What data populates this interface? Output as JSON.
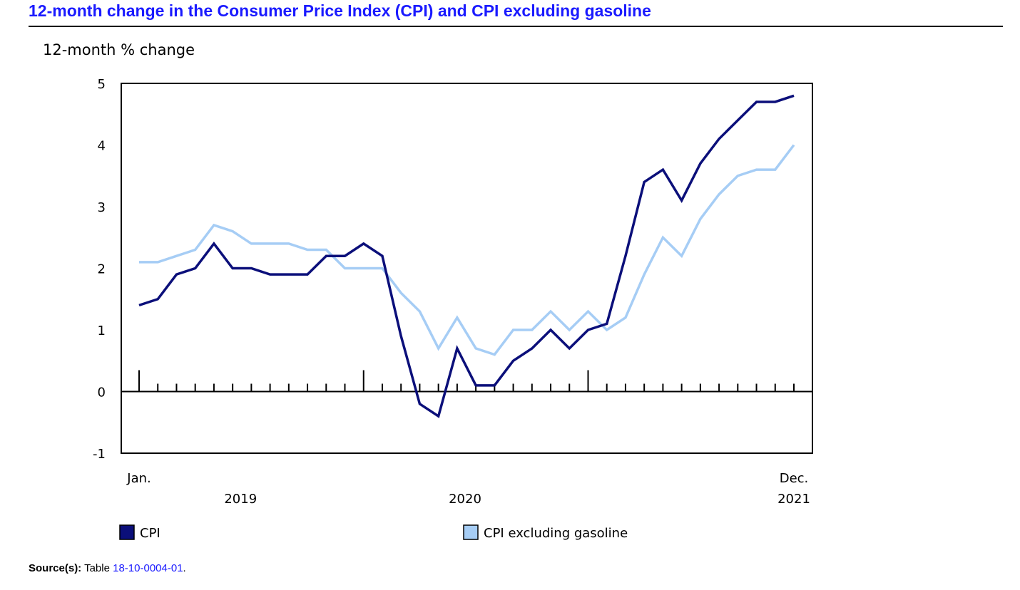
{
  "title": "12-month change in the Consumer Price Index (CPI) and CPI excluding gasoline",
  "source": {
    "label": "Source(s):",
    "text": "Table",
    "link": "18-10-0004-01",
    "end": "."
  },
  "chart_data": {
    "type": "line",
    "title": "12-month change in the Consumer Price Index (CPI) and CPI excluding gasoline",
    "ylabel": "12-month % change",
    "ylim": [
      -1,
      5
    ],
    "yticks": [
      -1,
      0,
      1,
      2,
      3,
      4,
      5
    ],
    "x_start": "Jan. 2019",
    "x_end": "Dec. 2021",
    "month_labels": {
      "first": "Jan.",
      "last": "Dec."
    },
    "years": [
      "2019",
      "2020",
      "2021"
    ],
    "grid": false,
    "legend_position": "bottom",
    "series": [
      {
        "name": "CPI",
        "color": "#0b0f7a",
        "values": [
          1.4,
          1.5,
          1.9,
          2.0,
          2.4,
          2.0,
          2.0,
          1.9,
          1.9,
          1.9,
          2.2,
          2.2,
          2.4,
          2.2,
          0.9,
          -0.2,
          -0.4,
          0.7,
          0.1,
          0.1,
          0.5,
          0.7,
          1.0,
          0.7,
          1.0,
          1.1,
          2.2,
          3.4,
          3.6,
          3.1,
          3.7,
          4.1,
          4.4,
          4.7,
          4.7,
          4.8
        ]
      },
      {
        "name": "CPI excluding gasoline",
        "color": "#a6cdf5",
        "values": [
          2.1,
          2.1,
          2.2,
          2.3,
          2.7,
          2.6,
          2.4,
          2.4,
          2.4,
          2.3,
          2.3,
          2.0,
          2.0,
          2.0,
          1.6,
          1.3,
          0.7,
          1.2,
          0.7,
          0.6,
          1.0,
          1.0,
          1.3,
          1.0,
          1.3,
          1.0,
          1.2,
          1.9,
          2.5,
          2.2,
          2.8,
          3.2,
          3.5,
          3.6,
          3.6,
          4.0
        ]
      }
    ]
  }
}
